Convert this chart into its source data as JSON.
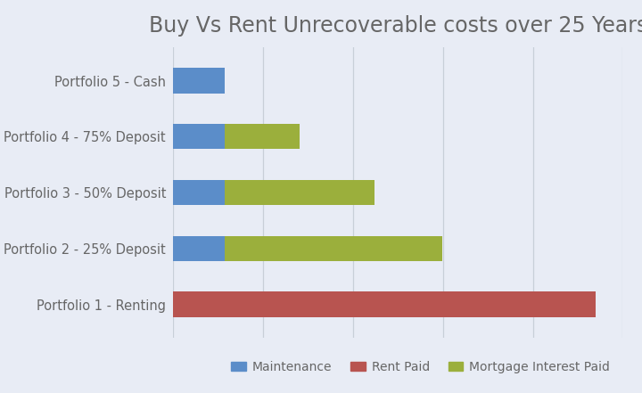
{
  "title": "Buy Vs Rent Unrecoverable costs over 25 Years",
  "categories": [
    "Portfolio 1 - Renting",
    "Portfolio 2 - 25% Deposit",
    "Portfolio 3 - 50% Deposit",
    "Portfolio 4 - 75% Deposit",
    "Portfolio 5 - Cash"
  ],
  "maintenance": [
    0,
    75000,
    75000,
    75000,
    75000
  ],
  "rent_paid": [
    620000,
    0,
    0,
    0,
    0
  ],
  "mortgage_interest": [
    0,
    320000,
    220000,
    110000,
    0
  ],
  "colors": {
    "maintenance": "#5b8dc9",
    "rent_paid": "#b85450",
    "mortgage_interest": "#9baf3c",
    "background": "#e8ecf5"
  },
  "legend_labels": [
    "Maintenance",
    "Rent Paid",
    "Mortgage Interest Paid"
  ],
  "title_fontsize": 17,
  "label_fontsize": 10.5,
  "legend_fontsize": 10,
  "bar_height": 0.45,
  "xlim": 660000,
  "grid_color": "#c8cfd8",
  "text_color": "#666666"
}
